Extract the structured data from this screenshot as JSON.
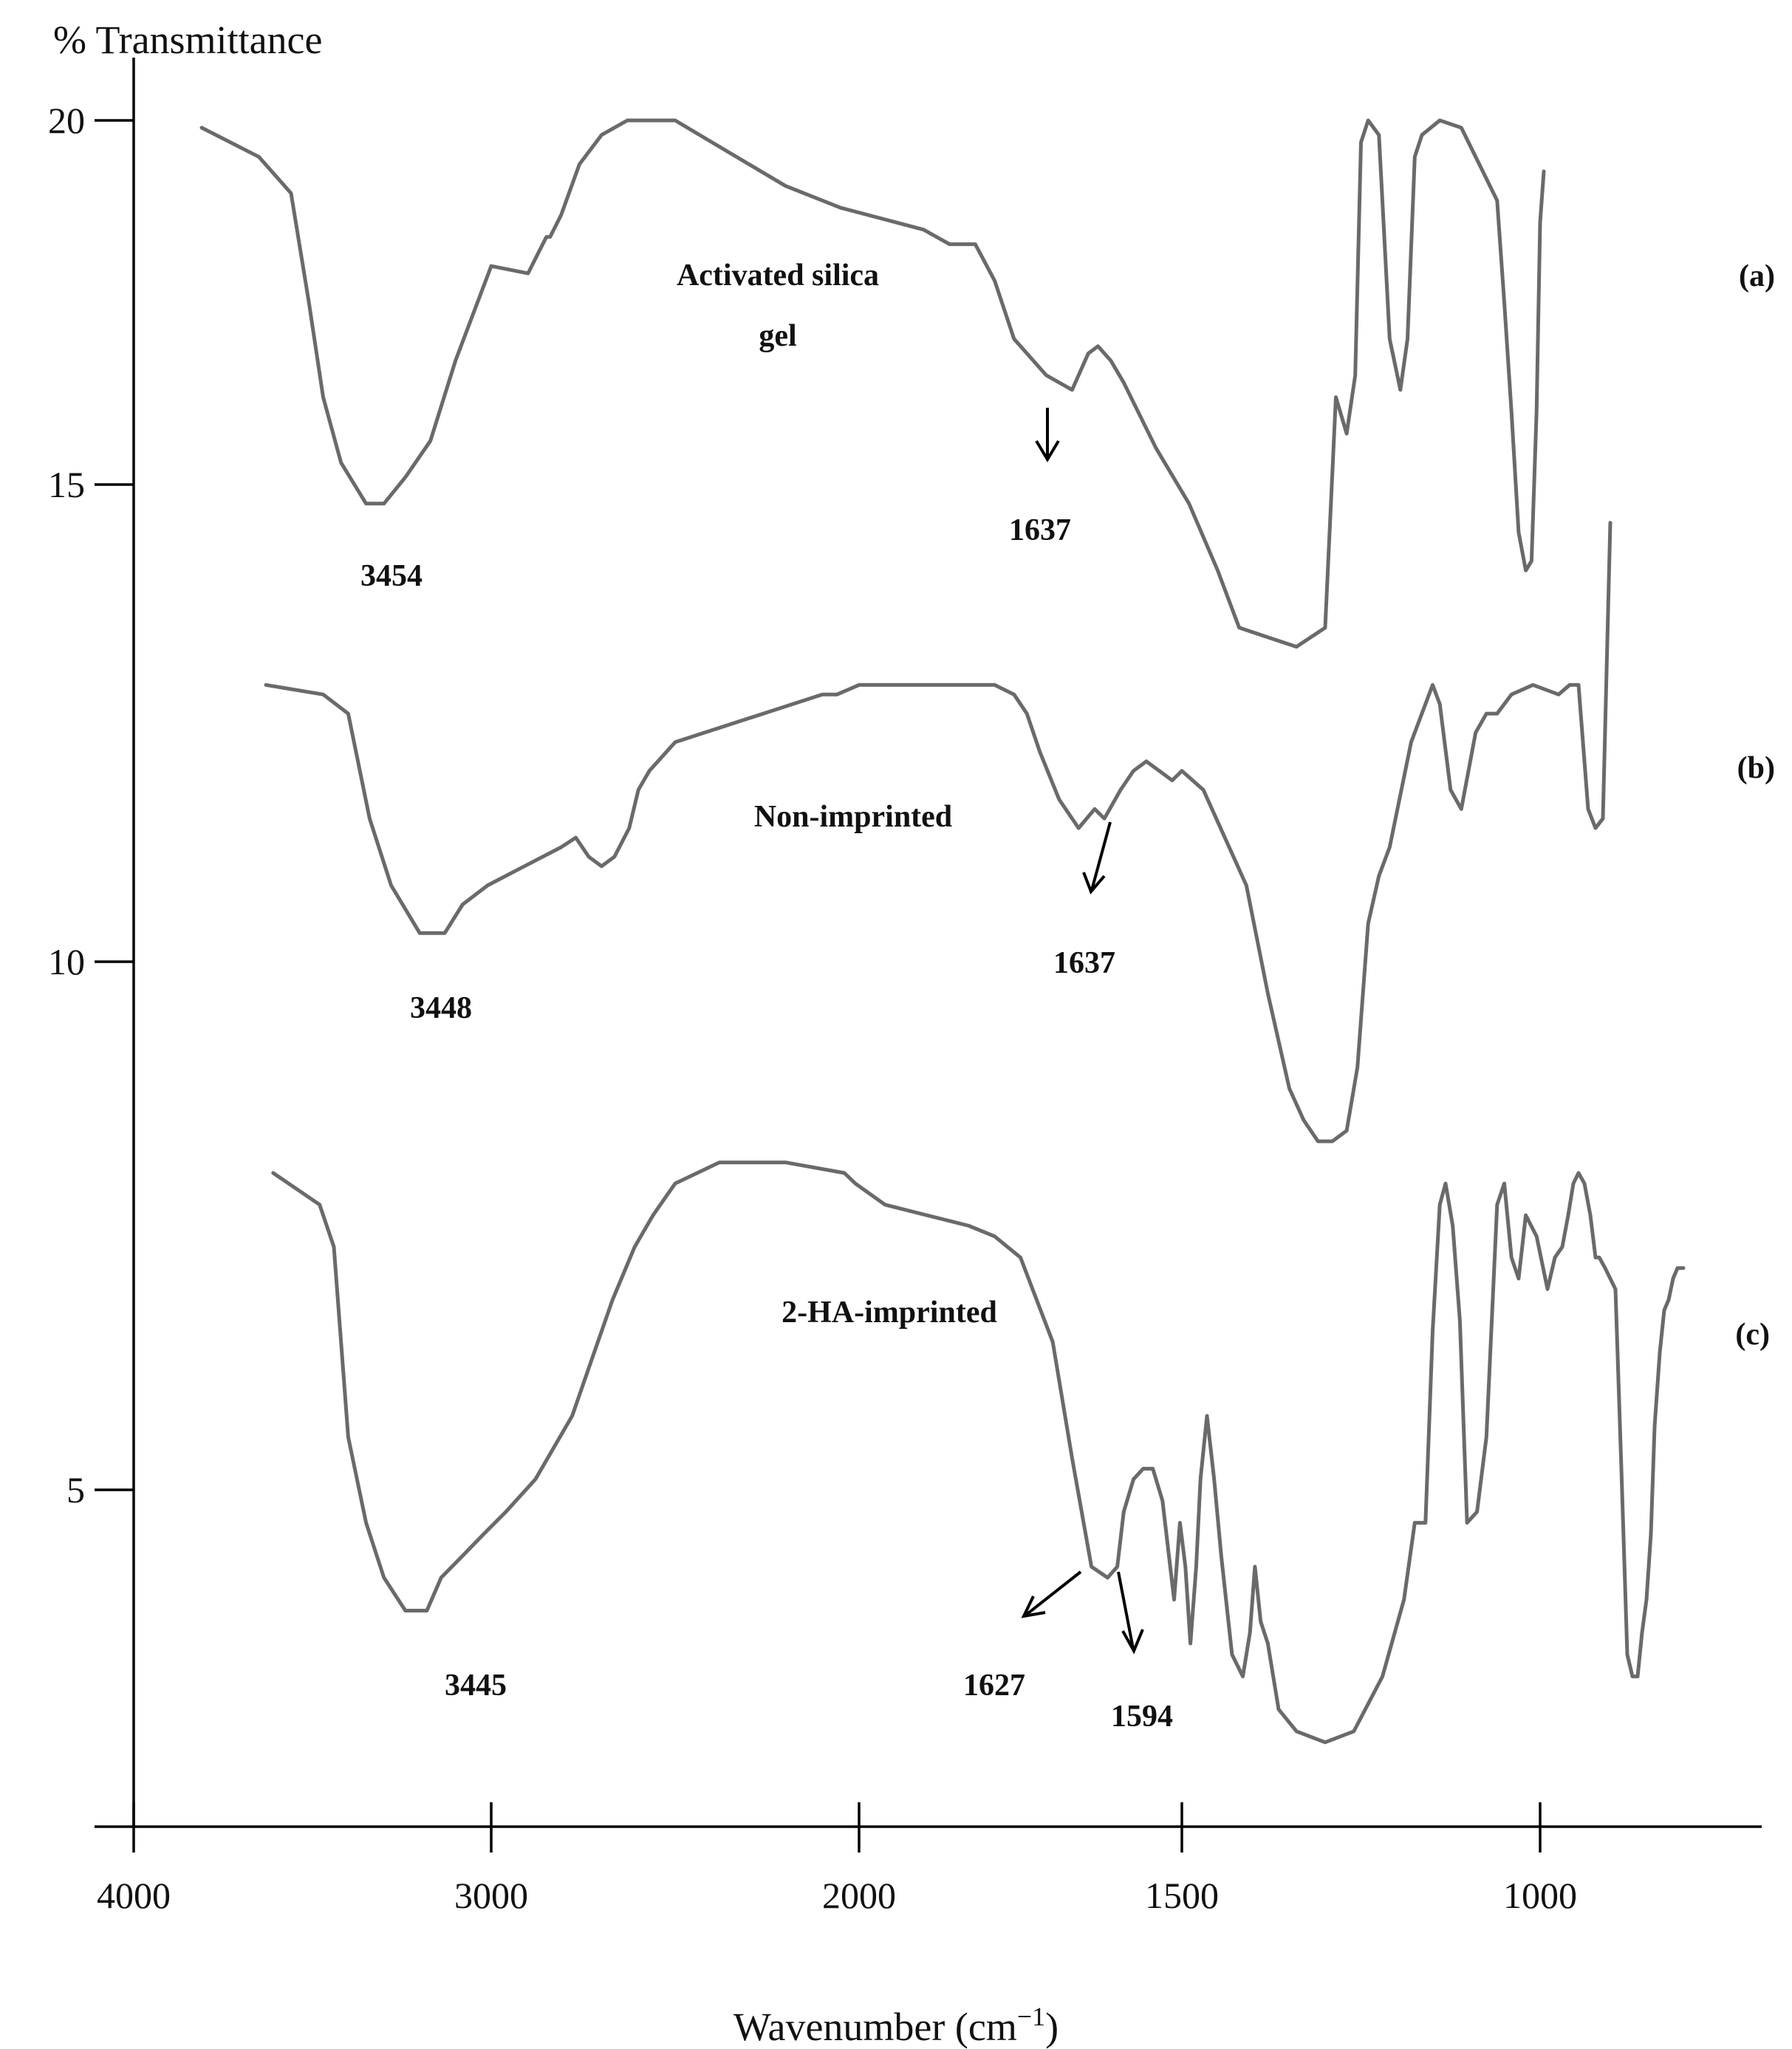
{
  "chart_data": {
    "type": "line",
    "ylabel": "% Transmittance",
    "xlabel_main": "Wavenumber (cm",
    "xlabel_sup": "−1",
    "xlabel_end": ")",
    "x_reversed": true,
    "x_ticks": [
      4000,
      3000,
      2000,
      1500,
      1000
    ],
    "y_ticks": [
      20,
      15,
      10,
      5
    ],
    "grid": false,
    "series": [
      {
        "label": "(a)",
        "name": "Activated silica gel",
        "name_line1": "Activated silica",
        "name_line2": "gel",
        "x": [
          3810,
          3650,
          3560,
          3510,
          3470,
          3420,
          3350,
          3300,
          3240,
          3170,
          3100,
          3000,
          2900,
          2850,
          2840,
          2810,
          2760,
          2700,
          2630,
          2500,
          2400,
          2200,
          2050,
          1900,
          1860,
          1820,
          1790,
          1760,
          1710,
          1670,
          1645,
          1630,
          1610,
          1590,
          1540,
          1490,
          1450,
          1420,
          1380,
          1340,
          1300,
          1285,
          1270,
          1258,
          1250,
          1240,
          1225,
          1210,
          1195,
          1185,
          1175,
          1165,
          1140,
          1110,
          1080,
          1060,
          1050,
          1040,
          1030,
          1020,
          1012,
          1005,
          1000,
          995
        ],
        "y": [
          19.9,
          19.5,
          19.0,
          17.5,
          16.2,
          15.3,
          14.8,
          14.8,
          15.1,
          15.6,
          16.7,
          18.0,
          17.9,
          18.4,
          18.4,
          18.7,
          19.4,
          19.8,
          20.0,
          20.0,
          19.7,
          19.1,
          18.8,
          18.5,
          18.3,
          18.3,
          17.8,
          17.0,
          16.5,
          16.3,
          16.8,
          16.9,
          16.7,
          16.4,
          15.5,
          14.8,
          14.1,
          13.5,
          13.4,
          13.3,
          13.5,
          16.2,
          15.7,
          16.5,
          19.7,
          20.0,
          19.8,
          17.0,
          16.3,
          17.0,
          19.5,
          19.8,
          20.0,
          19.9,
          19.3,
          18.9,
          17.5,
          16.0,
          14.5,
          14.1,
          14.2,
          16.0,
          18.6,
          19.3
        ]
      },
      {
        "label": "(b)",
        "name": "Non-imprinted",
        "x": [
          3630,
          3470,
          3400,
          3340,
          3280,
          3200,
          3130,
          3080,
          3010,
          2910,
          2810,
          2770,
          2735,
          2700,
          2665,
          2625,
          2600,
          2570,
          2500,
          2100,
          2060,
          2000,
          1860,
          1790,
          1760,
          1740,
          1720,
          1690,
          1660,
          1635,
          1620,
          1595,
          1575,
          1555,
          1535,
          1515,
          1500,
          1470,
          1440,
          1410,
          1380,
          1350,
          1330,
          1310,
          1290,
          1270,
          1255,
          1240,
          1225,
          1210,
          1180,
          1150,
          1140,
          1125,
          1110,
          1090,
          1075,
          1060,
          1040,
          1010,
          975,
          960,
          948,
          935,
          925,
          915,
          905
        ],
        "y": [
          12.9,
          12.8,
          12.6,
          11.5,
          10.8,
          10.3,
          10.3,
          10.6,
          10.8,
          11.0,
          11.2,
          11.3,
          11.1,
          11.0,
          11.1,
          11.4,
          11.8,
          12.0,
          12.3,
          12.8,
          12.8,
          12.9,
          12.9,
          12.9,
          12.8,
          12.6,
          12.2,
          11.7,
          11.4,
          11.6,
          11.5,
          11.8,
          12.0,
          12.1,
          12.0,
          11.9,
          12.0,
          11.8,
          11.3,
          10.8,
          9.7,
          8.8,
          8.5,
          8.3,
          8.3,
          8.4,
          9.0,
          10.4,
          10.9,
          11.2,
          12.3,
          12.9,
          12.7,
          11.8,
          11.6,
          12.4,
          12.6,
          12.6,
          12.8,
          12.9,
          12.8,
          12.9,
          12.9,
          11.6,
          11.4,
          11.5,
          14.6
        ]
      },
      {
        "label": "(c)",
        "name": "2-HA-imprinted",
        "x": [
          3610,
          3480,
          3440,
          3400,
          3350,
          3300,
          3240,
          3180,
          3140,
          3080,
          3020,
          2960,
          2880,
          2780,
          2720,
          2670,
          2610,
          2560,
          2500,
          2380,
          2200,
          2040,
          2010,
          1960,
          1830,
          1790,
          1750,
          1700,
          1670,
          1640,
          1615,
          1600,
          1590,
          1575,
          1560,
          1545,
          1530,
          1520,
          1512,
          1503,
          1495,
          1488,
          1480,
          1474,
          1465,
          1455,
          1445,
          1430,
          1415,
          1405,
          1398,
          1390,
          1380,
          1365,
          1340,
          1300,
          1260,
          1220,
          1190,
          1175,
          1160,
          1150,
          1140,
          1132,
          1122,
          1112,
          1102,
          1088,
          1075,
          1060,
          1050,
          1040,
          1030,
          1020,
          1005,
          990,
          980,
          970,
          962,
          955,
          948,
          940,
          932,
          925,
          920,
          912,
          905,
          898,
          890,
          882,
          875,
          868,
          862,
          856,
          850,
          845,
          838,
          832,
          826,
          820,
          814,
          810,
          806
        ],
        "y": [
          8.0,
          7.7,
          7.3,
          5.5,
          4.7,
          4.2,
          3.9,
          3.9,
          4.2,
          4.4,
          4.6,
          4.8,
          5.1,
          5.7,
          6.3,
          6.8,
          7.3,
          7.6,
          7.9,
          8.1,
          8.1,
          8.0,
          7.9,
          7.7,
          7.5,
          7.4,
          7.2,
          6.4,
          5.3,
          4.3,
          4.2,
          4.3,
          4.8,
          5.1,
          5.2,
          5.2,
          4.9,
          4.4,
          4.0,
          4.7,
          4.3,
          3.6,
          4.3,
          5.1,
          5.7,
          5.1,
          4.4,
          3.5,
          3.3,
          3.7,
          4.3,
          3.8,
          3.6,
          3.0,
          2.8,
          2.7,
          2.8,
          3.3,
          4.0,
          4.7,
          4.7,
          6.5,
          7.7,
          7.9,
          7.5,
          6.6,
          4.7,
          4.8,
          5.5,
          7.7,
          7.9,
          7.2,
          7.0,
          7.6,
          7.4,
          6.9,
          7.2,
          7.3,
          7.6,
          7.9,
          8.0,
          7.9,
          7.6,
          7.2,
          7.2,
          7.1,
          7.0,
          6.9,
          5.2,
          3.5,
          3.3,
          3.3,
          3.7,
          4.0,
          4.6,
          5.6,
          6.3,
          6.7,
          6.8,
          7.0,
          7.1,
          7.1,
          7.1
        ]
      }
    ],
    "annotations": [
      {
        "series": "(a)",
        "text": "3454"
      },
      {
        "series": "(a)",
        "text": "1637"
      },
      {
        "series": "(b)",
        "text": "3448"
      },
      {
        "series": "(b)",
        "text": "1637"
      },
      {
        "series": "(c)",
        "text": "3445"
      },
      {
        "series": "(c)",
        "text": "1627"
      },
      {
        "series": "(c)",
        "text": "1594"
      }
    ]
  }
}
